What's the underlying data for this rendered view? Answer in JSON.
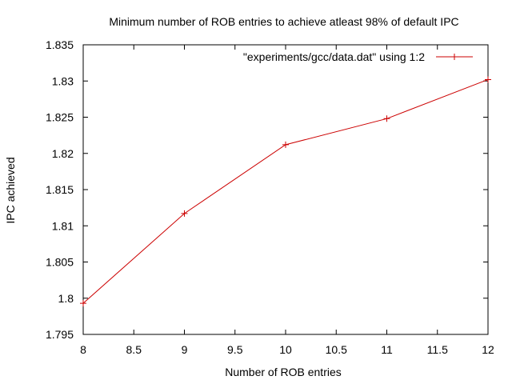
{
  "chart_data": {
    "type": "line",
    "title": "Minimum number of ROB entries to achieve atleast 98% of default IPC",
    "xlabel": "Number of ROB entries",
    "ylabel": "IPC achieved",
    "xlim": [
      8,
      12
    ],
    "ylim": [
      1.795,
      1.835
    ],
    "x_ticks": [
      8,
      8.5,
      9,
      9.5,
      10,
      10.5,
      11,
      11.5,
      12
    ],
    "x_tick_labels": [
      "8",
      "8.5",
      "9",
      "9.5",
      "10",
      "10.5",
      "11",
      "11.5",
      "12"
    ],
    "y_ticks": [
      1.795,
      1.8,
      1.805,
      1.81,
      1.815,
      1.82,
      1.825,
      1.83,
      1.835
    ],
    "y_tick_labels": [
      "1.795",
      "1.8",
      "1.805",
      "1.81",
      "1.815",
      "1.82",
      "1.825",
      "1.83",
      "1.835"
    ],
    "grid": false,
    "legend_position": "top-right",
    "series": [
      {
        "name": "\"experiments/gcc/data.dat\" using 1:2",
        "color": "#cc0000",
        "marker": "plus",
        "x": [
          8,
          9,
          10,
          11,
          12
        ],
        "y": [
          1.7993,
          1.8117,
          1.8212,
          1.8248,
          1.8302
        ]
      }
    ]
  }
}
